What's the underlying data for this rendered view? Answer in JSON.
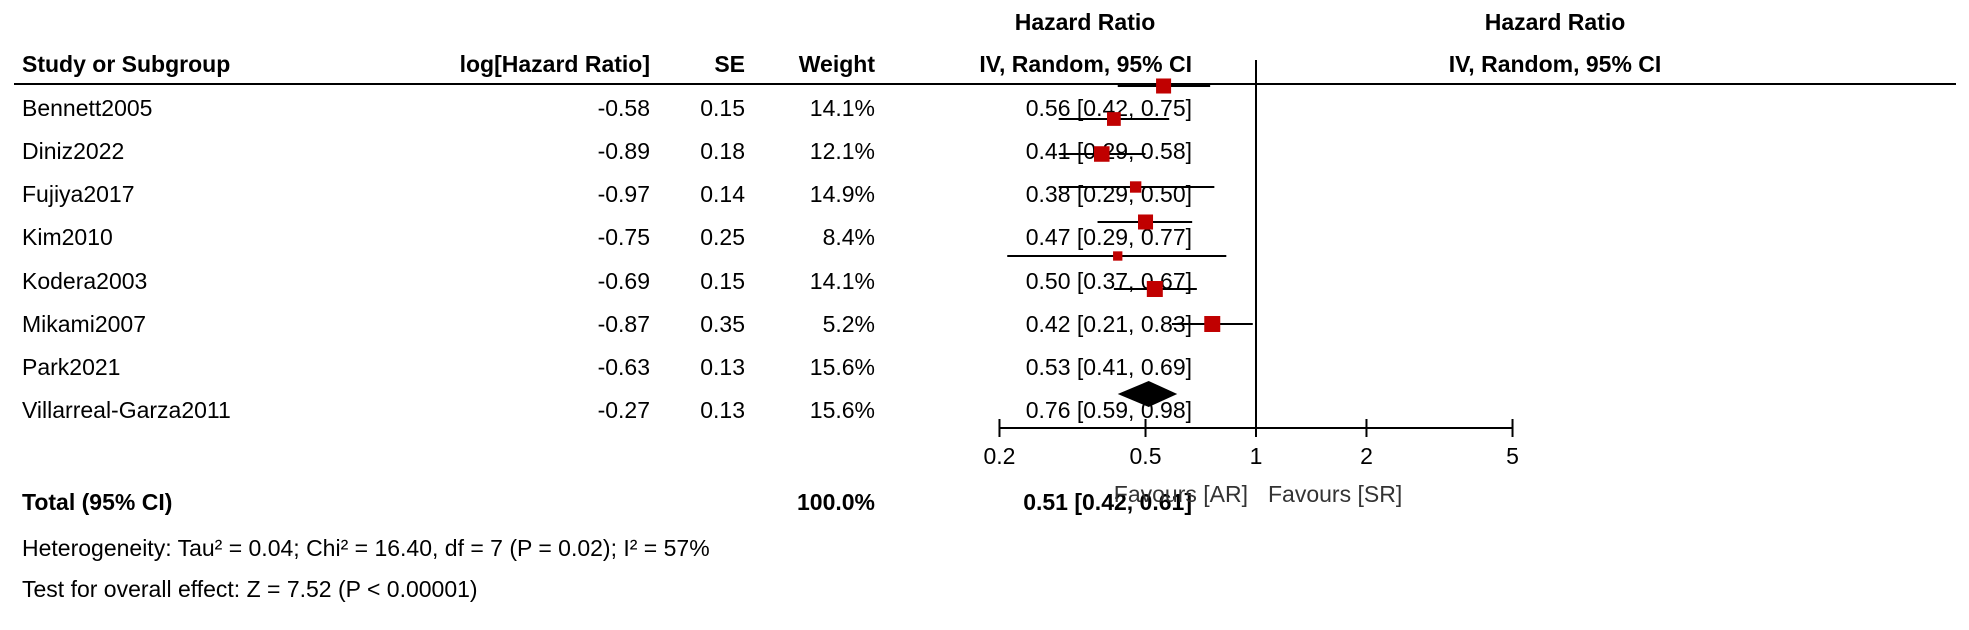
{
  "headers": {
    "study": "Study or Subgroup",
    "log_hr": "log[Hazard Ratio]",
    "se": "SE",
    "weight": "Weight",
    "hr_title": "Hazard Ratio",
    "hr_subtitle": "IV, Random, 95% CI",
    "plot_title": "Hazard Ratio",
    "plot_subtitle": "IV, Random, 95% CI"
  },
  "studies": [
    {
      "name": "Bennett2005",
      "log_hr": "-0.58",
      "se": "0.15",
      "weight": "14.1%",
      "ci_text": "0.56 [0.42, 0.75]"
    },
    {
      "name": "Diniz2022",
      "log_hr": "-0.89",
      "se": "0.18",
      "weight": "12.1%",
      "ci_text": "0.41 [0.29, 0.58]"
    },
    {
      "name": "Fujiya2017",
      "log_hr": "-0.97",
      "se": "0.14",
      "weight": "14.9%",
      "ci_text": "0.38 [0.29, 0.50]"
    },
    {
      "name": "Kim2010",
      "log_hr": "-0.75",
      "se": "0.25",
      "weight": "8.4%",
      "ci_text": "0.47 [0.29, 0.77]"
    },
    {
      "name": "Kodera2003",
      "log_hr": "-0.69",
      "se": "0.15",
      "weight": "14.1%",
      "ci_text": "0.50 [0.37, 0.67]"
    },
    {
      "name": "Mikami2007",
      "log_hr": "-0.87",
      "se": "0.35",
      "weight": "5.2%",
      "ci_text": "0.42 [0.21, 0.83]"
    },
    {
      "name": "Park2021",
      "log_hr": "-0.63",
      "se": "0.13",
      "weight": "15.6%",
      "ci_text": "0.53 [0.41, 0.69]"
    },
    {
      "name": "Villarreal-Garza2011",
      "log_hr": "-0.27",
      "se": "0.13",
      "weight": "15.6%",
      "ci_text": "0.76 [0.59, 0.98]"
    }
  ],
  "total": {
    "label": "Total (95% CI)",
    "weight": "100.0%",
    "ci_text": "0.51 [0.42, 0.61]"
  },
  "heterogeneity": "Heterogeneity: Tau² = 0.04; Chi² = 16.40, df = 7 (P = 0.02); I² = 57%",
  "overall_effect": "Test for overall effect: Z = 7.52 (P < 0.00001)",
  "axis": {
    "ticks": [
      "0.2",
      "0.5",
      "1",
      "2",
      "5"
    ],
    "favours_left": "Favours [AR]",
    "favours_right": "Favours [SR]"
  },
  "colors": {
    "marker": "#c00000",
    "diamond": "#000000"
  },
  "chart_data": {
    "type": "forest",
    "scale": "log",
    "xlim": [
      0.2,
      5
    ],
    "reference_line": 1,
    "series": [
      {
        "name": "Bennett2005",
        "hr": 0.56,
        "lower": 0.42,
        "upper": 0.75,
        "weight": 14.1
      },
      {
        "name": "Diniz2022",
        "hr": 0.41,
        "lower": 0.29,
        "upper": 0.58,
        "weight": 12.1
      },
      {
        "name": "Fujiya2017",
        "hr": 0.38,
        "lower": 0.29,
        "upper": 0.5,
        "weight": 14.9
      },
      {
        "name": "Kim2010",
        "hr": 0.47,
        "lower": 0.29,
        "upper": 0.77,
        "weight": 8.4
      },
      {
        "name": "Kodera2003",
        "hr": 0.5,
        "lower": 0.37,
        "upper": 0.67,
        "weight": 14.1
      },
      {
        "name": "Mikami2007",
        "hr": 0.42,
        "lower": 0.21,
        "upper": 0.83,
        "weight": 5.2
      },
      {
        "name": "Park2021",
        "hr": 0.53,
        "lower": 0.41,
        "upper": 0.69,
        "weight": 15.6
      },
      {
        "name": "Villarreal-Garza2011",
        "hr": 0.76,
        "lower": 0.59,
        "upper": 0.98,
        "weight": 15.6
      }
    ],
    "pooled": {
      "hr": 0.51,
      "lower": 0.42,
      "upper": 0.61
    }
  }
}
